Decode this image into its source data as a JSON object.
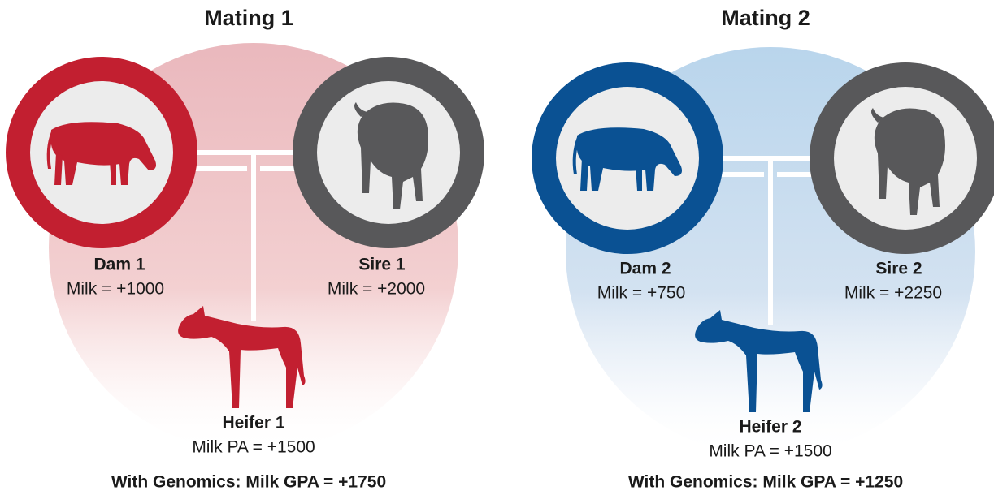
{
  "matings": [
    {
      "title": "Mating 1",
      "dam": {
        "name": "Dam 1",
        "trait": "Milk = +1000"
      },
      "sire": {
        "name": "Sire 1",
        "trait": "Milk = +2000"
      },
      "heifer": {
        "name": "Heifer 1",
        "trait": "Milk PA = +1500"
      },
      "genomics": "With Genomics: Milk GPA = +1750"
    },
    {
      "title": "Mating 2",
      "dam": {
        "name": "Dam 2",
        "trait": "Milk = +750"
      },
      "sire": {
        "name": "Sire 2",
        "trait": "Milk = +2250"
      },
      "heifer": {
        "name": "Heifer 2",
        "trait": "Milk PA = +1500"
      },
      "genomics": "With Genomics: Milk GPA = +1250"
    }
  ]
}
